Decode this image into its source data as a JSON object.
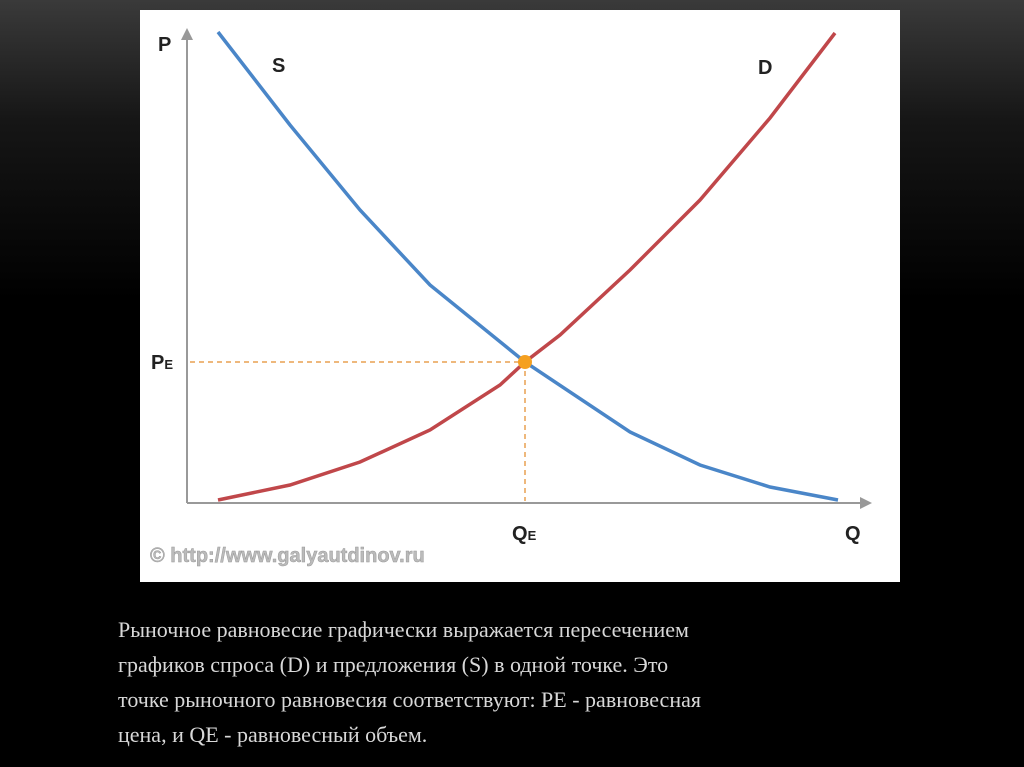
{
  "diagram": {
    "axis_y": "P",
    "axis_x": "Q",
    "curve_s": "S",
    "curve_d": "D",
    "pe": {
      "main": "P",
      "sub": "E"
    },
    "qe": {
      "main": "Q",
      "sub": "E"
    },
    "watermark": "© http://www.galyautdinov.ru"
  },
  "caption": {
    "lines": [
      "Рыночное равновесие графически выражается пересечением",
      "графиков спроса (D) и предложения (S) в одной точке. Это",
      "точке рыночного равновесия соответствуют: PE - равновесная",
      "цена, и QE - равновесный объем."
    ]
  }
}
